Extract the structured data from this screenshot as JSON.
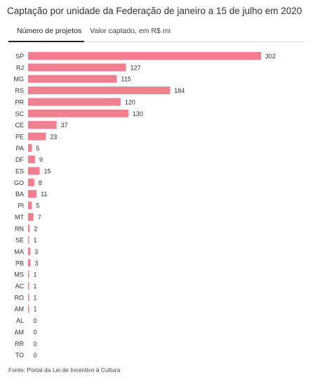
{
  "header": {
    "title": "Captação por unidade da Federação de janeiro a 15 de julho em 2020",
    "tabs": [
      {
        "label": "Número de projetos",
        "active": true
      },
      {
        "label": "Valor captado, em R$ mi",
        "active": false
      }
    ]
  },
  "chart_data": {
    "type": "bar",
    "orientation": "horizontal",
    "title": "Captação por unidade da Federação de janeiro a 15 de julho em 2020",
    "categories": [
      "SP",
      "RJ",
      "MG",
      "RS",
      "PR",
      "SC",
      "CE",
      "PE",
      "PA",
      "DF",
      "ES",
      "GO",
      "BA",
      "PI",
      "MT",
      "RN",
      "SE",
      "MA",
      "PB",
      "MS",
      "AC",
      "RO",
      "AM",
      "AL",
      "AM",
      "RR",
      "TO"
    ],
    "values": [
      302,
      127,
      115,
      184,
      120,
      130,
      37,
      23,
      5,
      9,
      15,
      8,
      11,
      5,
      7,
      2,
      1,
      3,
      3,
      1,
      1,
      1,
      1,
      0,
      0,
      0,
      0
    ],
    "bar_color": "#f08090",
    "grid": false,
    "legend": "none"
  },
  "footer": {
    "source": "Fonte: Portal da Lei de Incentivo à Cultura"
  }
}
